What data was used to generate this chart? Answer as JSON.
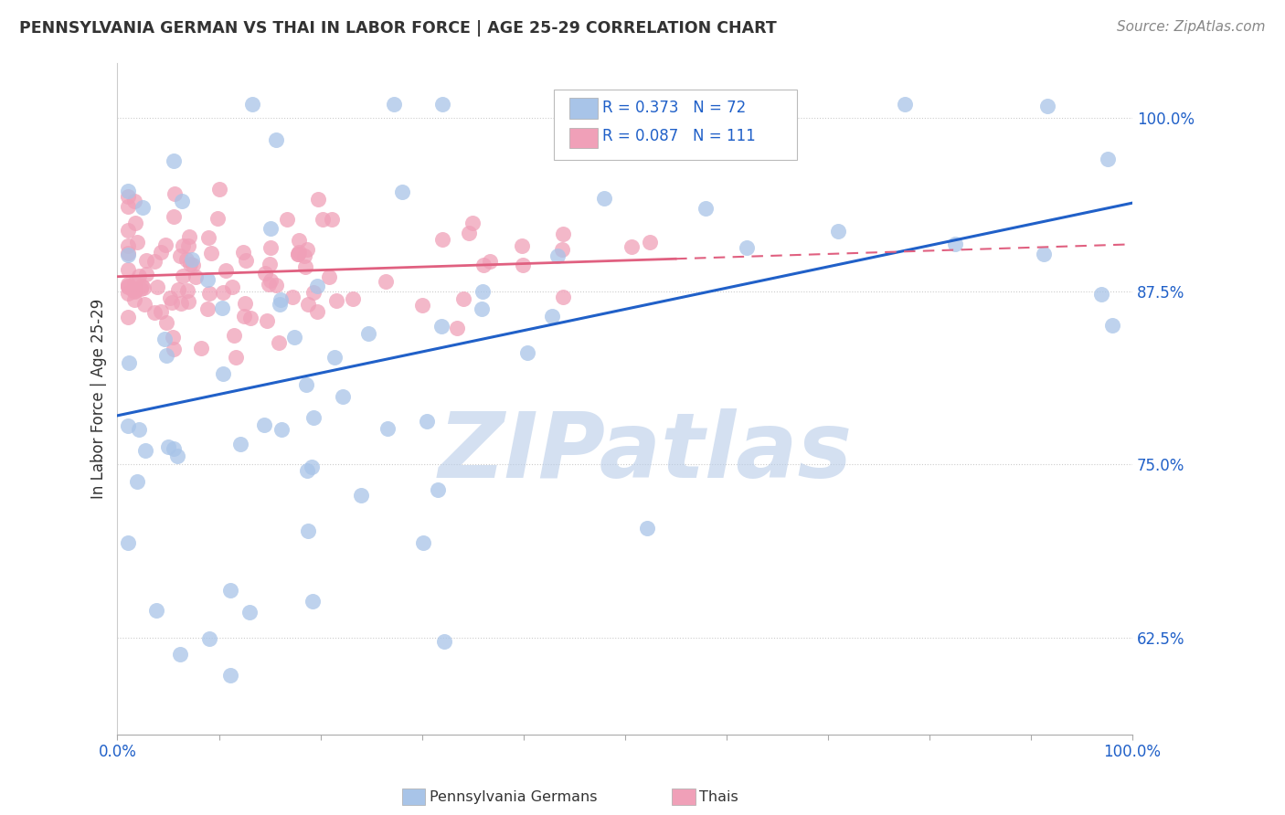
{
  "title": "PENNSYLVANIA GERMAN VS THAI IN LABOR FORCE | AGE 25-29 CORRELATION CHART",
  "source": "Source: ZipAtlas.com",
  "ylabel": "In Labor Force | Age 25-29",
  "xlim": [
    0.0,
    1.0
  ],
  "ylim": [
    0.555,
    1.04
  ],
  "yticks": [
    0.625,
    0.75,
    0.875,
    1.0
  ],
  "ytick_labels": [
    "62.5%",
    "75.0%",
    "87.5%",
    "100.0%"
  ],
  "xtick_labels": [
    "0.0%",
    "100.0%"
  ],
  "scatter_blue_color": "#a8c4e8",
  "scatter_pink_color": "#f0a0b8",
  "regression_blue_color": "#2060c8",
  "regression_pink_color": "#e06080",
  "grid_color": "#cccccc",
  "watermark_color": "#b8cce8",
  "watermark_text": "ZIPatlas",
  "blue_R": 0.373,
  "blue_N": 72,
  "pink_R": 0.087,
  "pink_N": 111,
  "legend_text_color": "#2060c8",
  "title_color": "#333333",
  "source_color": "#888888",
  "axis_label_color": "#333333",
  "tick_color": "#2060c8"
}
